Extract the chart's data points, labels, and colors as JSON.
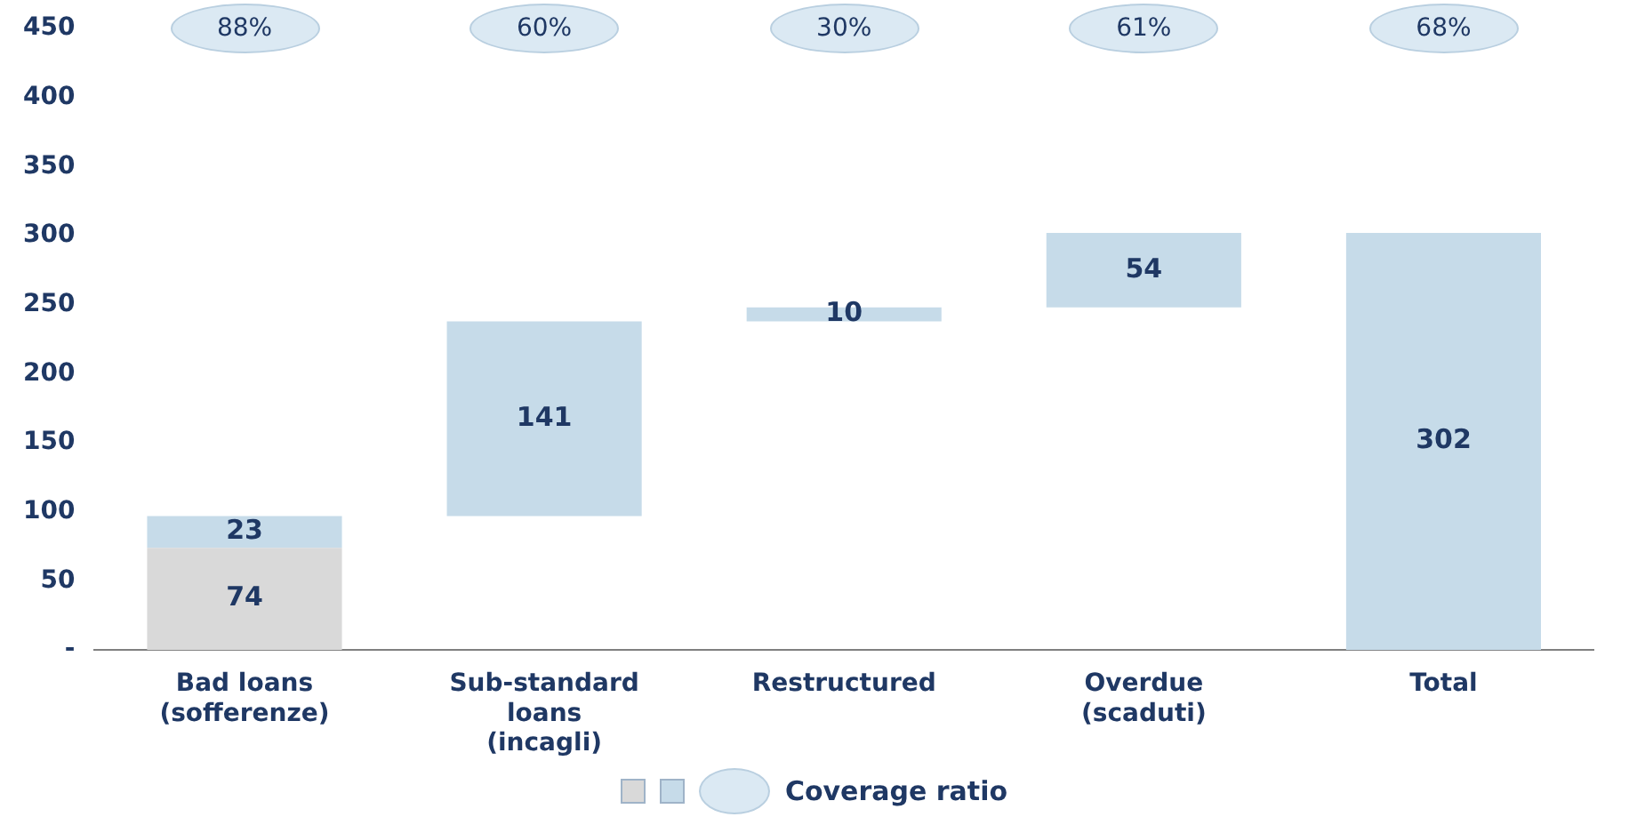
{
  "chart_data": {
    "type": "bar",
    "categories": [
      "Bad loans (sofferenze)",
      "Sub-standard loans (incagli)",
      "Restructured",
      "Overdue (scaduti)",
      "Total"
    ],
    "series": [
      {
        "color": "#d9d9d9",
        "values": [
          74,
          null,
          null,
          null,
          null
        ]
      },
      {
        "color": "#c6dbe9",
        "values": [
          23,
          141,
          10,
          54,
          302
        ],
        "base": [
          74,
          97,
          238,
          248,
          0
        ]
      }
    ],
    "ylim": [
      0,
      450
    ],
    "yticks": [
      {
        "value": 0,
        "label": "-"
      },
      50,
      100,
      150,
      200,
      250,
      300,
      350,
      400,
      450
    ],
    "grid": false,
    "data_labels": true,
    "legend_title": "Coverage ratio",
    "annotations": [
      "88%",
      "60%",
      "30%",
      "61%",
      "68%"
    ]
  }
}
